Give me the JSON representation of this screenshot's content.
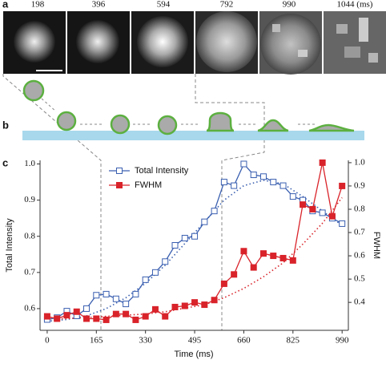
{
  "panel_a": {
    "label": "a",
    "times": [
      "198",
      "396",
      "594",
      "792",
      "990",
      "1044 (ms)"
    ]
  },
  "panel_b": {
    "label": "b"
  },
  "chart_data": {
    "type": "line",
    "panel_label": "c",
    "x_label": "Time (ms)",
    "y_label": "Total Intensity",
    "y2_label": "FWHM",
    "x": [
      0,
      33,
      66,
      99,
      132,
      165,
      198,
      231,
      264,
      297,
      330,
      363,
      396,
      429,
      462,
      495,
      528,
      561,
      594,
      627,
      660,
      693,
      726,
      759,
      792,
      825,
      858,
      891,
      924,
      957,
      990
    ],
    "series": [
      {
        "name": "Total Intensity",
        "color": "#3a5fb0",
        "marker": "open-square",
        "axis": "y",
        "values": [
          0.57,
          0.575,
          0.593,
          0.58,
          0.6,
          0.637,
          0.64,
          0.627,
          0.613,
          0.64,
          0.68,
          0.7,
          0.73,
          0.775,
          0.795,
          0.8,
          0.84,
          0.87,
          0.95,
          0.94,
          1.0,
          0.97,
          0.965,
          0.95,
          0.94,
          0.91,
          0.9,
          0.87,
          0.865,
          0.85,
          0.835
        ]
      },
      {
        "name": "FWHM",
        "color": "#d9232a",
        "marker": "filled-square",
        "axis": "y2",
        "values": [
          0.34,
          0.33,
          0.345,
          0.36,
          0.33,
          0.33,
          0.325,
          0.35,
          0.35,
          0.325,
          0.34,
          0.37,
          0.34,
          0.38,
          0.385,
          0.4,
          0.39,
          0.41,
          0.48,
          0.52,
          0.62,
          0.55,
          0.61,
          0.6,
          0.59,
          0.58,
          0.82,
          0.8,
          1.0,
          0.77,
          0.9
        ]
      }
    ],
    "fit_x": [
      0,
      66,
      132,
      198,
      264,
      330,
      396,
      462,
      528,
      594,
      660,
      726,
      792,
      858,
      924,
      990
    ],
    "fits": [
      {
        "color": "#3a5fb0",
        "axis": "y",
        "values": [
          0.565,
          0.57,
          0.58,
          0.6,
          0.63,
          0.67,
          0.72,
          0.78,
          0.84,
          0.9,
          0.94,
          0.955,
          0.945,
          0.91,
          0.87,
          0.83
        ]
      },
      {
        "color": "#d9232a",
        "axis": "y2",
        "values": [
          0.33,
          0.33,
          0.335,
          0.34,
          0.345,
          0.35,
          0.36,
          0.375,
          0.39,
          0.42,
          0.46,
          0.51,
          0.57,
          0.65,
          0.74,
          0.85
        ]
      }
    ],
    "xlim": [
      -24,
      1011
    ],
    "xticks": [
      0,
      165,
      330,
      495,
      660,
      825,
      990
    ],
    "ylim": [
      0.54,
      1.01
    ],
    "yticks": [
      0.6,
      0.7,
      0.8,
      0.9,
      {
        "value": 1,
        "label": "1.0"
      }
    ],
    "y2lim": [
      0.28,
      1.01
    ],
    "y2ticks": [
      0.4,
      0.5,
      0.6,
      0.7,
      0.8,
      0.9,
      {
        "value": 1,
        "label": "1.0"
      }
    ],
    "legend": "upper-left"
  }
}
